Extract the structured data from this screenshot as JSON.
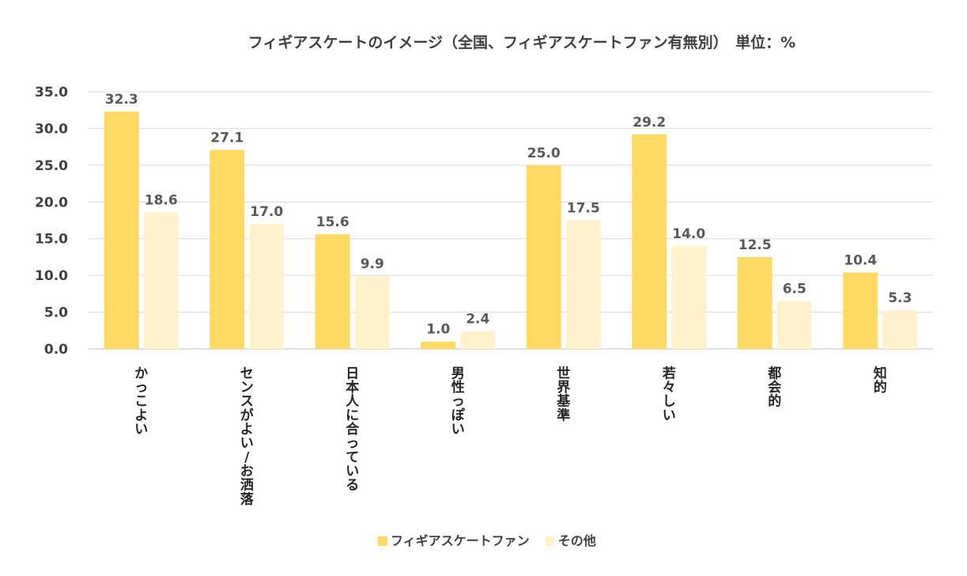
{
  "chart_data": {
    "type": "bar",
    "title": "フィギアスケートのイメージ（全国、フィギアスケートファン有無別）　単位：%",
    "categories": [
      "かっこよい",
      "センスがよい/お洒落",
      "日本人に合っている",
      "男性っぽい",
      "世界基準",
      "若々しい",
      "都会的",
      "知的"
    ],
    "series": [
      {
        "name": "フィギアスケートファン",
        "color": "#FFD966",
        "values": [
          32.3,
          27.1,
          15.6,
          1.0,
          25.0,
          29.2,
          12.5,
          10.4
        ]
      },
      {
        "name": "その他",
        "color": "#FFF2CC",
        "values": [
          18.6,
          17.0,
          9.9,
          2.4,
          17.5,
          14.0,
          6.5,
          5.3
        ]
      }
    ],
    "ylim": [
      0,
      35
    ],
    "yticks": [
      "0.0",
      "5.0",
      "10.0",
      "15.0",
      "20.0",
      "25.0",
      "30.0",
      "35.0"
    ],
    "grid": true,
    "legend_position": "bottom"
  }
}
